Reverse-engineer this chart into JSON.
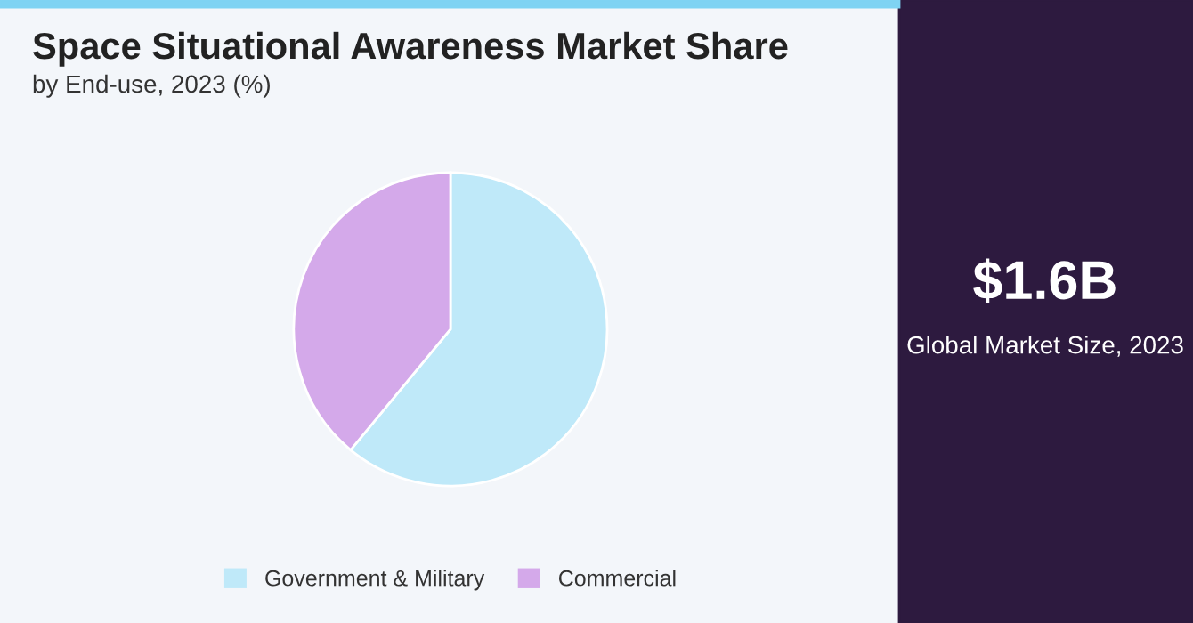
{
  "chart_data": {
    "type": "pie",
    "title": "Space Situational Awareness Market Share",
    "subtitle": "by End-use, 2023 (%)",
    "categories": [
      "Government & Military",
      "Commercial"
    ],
    "values": [
      61,
      39
    ],
    "colors": [
      "#bfe9f9",
      "#d4a9ea"
    ],
    "legend": "bottom",
    "annotations": [
      "$1.6B",
      "Global Market Size, 2023"
    ]
  }
}
